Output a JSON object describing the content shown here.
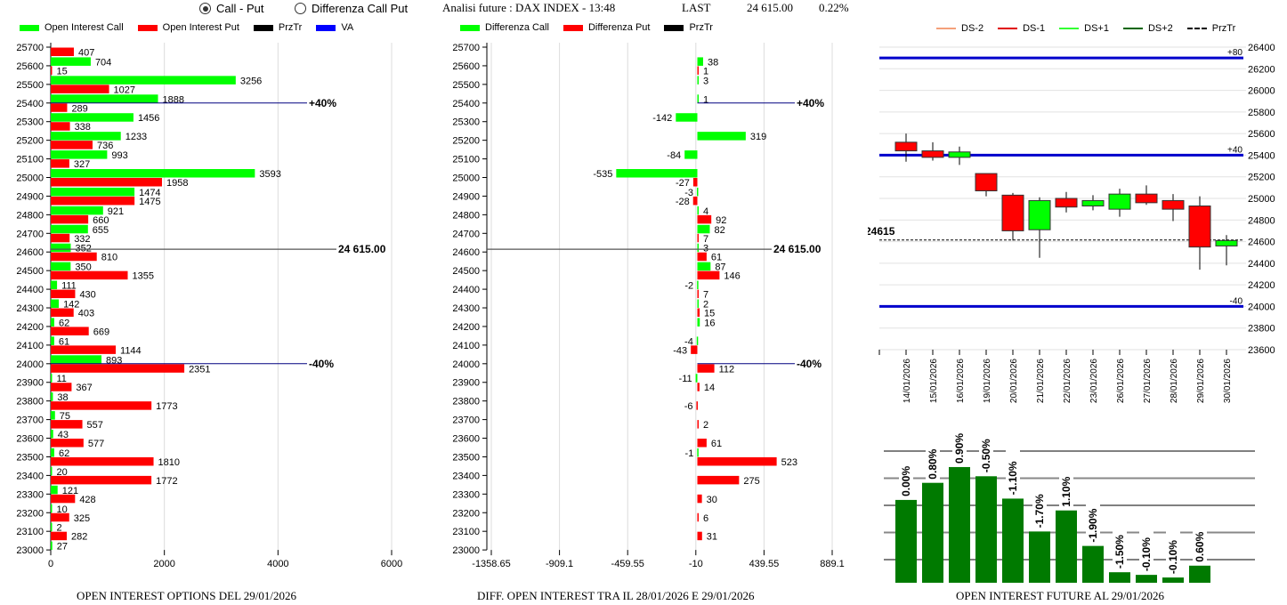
{
  "controls": {
    "view_options": [
      {
        "label": "Call - Put",
        "selected": true
      },
      {
        "label": "Differenza Call Put",
        "selected": false
      }
    ]
  },
  "header": {
    "title": "Analisi future : DAX INDEX - 13:48",
    "last_label": "LAST",
    "last_value": "24 615.00",
    "change_pct": "0.22%"
  },
  "colors": {
    "call": "#00ff00",
    "put": "#ff0000",
    "przTr": "#000000",
    "va": "#0000ff",
    "ds_minus2": "#f4a07a",
    "ds_minus1": "#e00000",
    "ds_plus1": "#33ff33",
    "ds_plus2": "#006600",
    "oi_future_bar": "#007a00"
  },
  "chart_data": [
    {
      "id": "oi_options",
      "type": "bar",
      "orientation": "horizontal",
      "title": "OPEN INTEREST OPTIONS DEL 29/01/2026",
      "legend": [
        {
          "label": "Open Interest Call",
          "color": "#00ff00"
        },
        {
          "label": "Open Interest Put",
          "color": "#ff0000"
        },
        {
          "label": "PrzTr",
          "color": "#000000"
        },
        {
          "label": "VA",
          "color": "#0000ff"
        }
      ],
      "categories": [
        25700,
        25600,
        25500,
        25400,
        25300,
        25200,
        25100,
        25000,
        24900,
        24800,
        24700,
        24600,
        24500,
        24400,
        24300,
        24200,
        24100,
        24000,
        23900,
        23800,
        23700,
        23600,
        23500,
        23400,
        23300,
        23200,
        23100,
        23000
      ],
      "series": [
        {
          "name": "Open Interest Call",
          "values": [
            null,
            704,
            3256,
            1888,
            1456,
            1233,
            993,
            3593,
            1474,
            921,
            655,
            352,
            350,
            111,
            142,
            62,
            61,
            893,
            11,
            38,
            75,
            43,
            62,
            20,
            121,
            10,
            2,
            27
          ]
        },
        {
          "name": "Open Interest Put",
          "values": [
            407,
            15,
            1027,
            289,
            338,
            736,
            327,
            1958,
            1475,
            660,
            332,
            810,
            1355,
            430,
            403,
            669,
            1144,
            2351,
            367,
            1773,
            557,
            577,
            1810,
            1772,
            428,
            325,
            282,
            null
          ]
        }
      ],
      "xlim": [
        0,
        6000
      ],
      "xticks": [
        "0",
        "2000",
        "4000",
        "6000"
      ],
      "annotations": [
        {
          "label": "+40%",
          "y": 25400,
          "color": "#000080"
        },
        {
          "label": "24 615.00",
          "y": 24615,
          "color": "#555555"
        },
        {
          "label": "-40%",
          "y": 24000,
          "color": "#000080"
        }
      ]
    },
    {
      "id": "oi_diff",
      "type": "bar",
      "orientation": "horizontal",
      "title": "DIFF. OPEN INTEREST TRA IL 28/01/2026 E 29/01/2026",
      "legend": [
        {
          "label": "Differenza Call",
          "color": "#00ff00"
        },
        {
          "label": "Differenza Put",
          "color": "#ff0000"
        },
        {
          "label": "PrzTr",
          "color": "#000000"
        }
      ],
      "categories": [
        25700,
        25600,
        25500,
        25400,
        25300,
        25200,
        25100,
        25000,
        24900,
        24800,
        24700,
        24600,
        24500,
        24400,
        24300,
        24200,
        24100,
        24000,
        23900,
        23800,
        23700,
        23600,
        23500,
        23400,
        23300,
        23200,
        23100,
        23000
      ],
      "series": [
        {
          "name": "Differenza Call",
          "values": [
            null,
            38,
            3,
            1,
            -142,
            319,
            -84,
            -535,
            -3,
            4,
            82,
            3,
            87,
            -2,
            2,
            16,
            -4,
            null,
            -11,
            null,
            null,
            null,
            -1,
            null,
            null,
            null,
            null,
            null
          ]
        },
        {
          "name": "Differenza Put",
          "values": [
            null,
            1,
            null,
            null,
            null,
            null,
            null,
            -27,
            -28,
            92,
            7,
            61,
            146,
            7,
            15,
            null,
            -43,
            112,
            14,
            -6,
            2,
            61,
            523,
            275,
            30,
            6,
            31,
            null
          ]
        }
      ],
      "xlim": [
        -1358.65,
        889.1
      ],
      "xticks": [
        "-1358.65",
        "-909.1",
        "-459.55",
        "-10",
        "439.55",
        "889.1"
      ],
      "annotations": [
        {
          "label": "+40%",
          "y": 25400,
          "color": "#000080"
        },
        {
          "label": "24 615.00",
          "y": 24615,
          "color": "#555555"
        },
        {
          "label": "-40%",
          "y": 24000,
          "color": "#000080"
        }
      ]
    },
    {
      "id": "future_candles",
      "type": "candlestick",
      "legend": [
        {
          "label": "DS-2",
          "color": "#f4a07a",
          "style": "solid"
        },
        {
          "label": "DS-1",
          "color": "#e00000",
          "style": "solid"
        },
        {
          "label": "DS+1",
          "color": "#33ff33",
          "style": "solid"
        },
        {
          "label": "DS+2",
          "color": "#006600",
          "style": "solid"
        },
        {
          "label": "PrzTr",
          "color": "#000000",
          "style": "dashed"
        }
      ],
      "categories": [
        "14/01/2026",
        "15/01/2026",
        "16/01/2026",
        "19/01/2026",
        "20/01/2026",
        "21/01/2026",
        "22/01/2026",
        "23/01/2026",
        "26/01/2026",
        "27/01/2026",
        "28/01/2026",
        "29/01/2026",
        "30/01/2026"
      ],
      "ohlc": [
        {
          "open": 25520,
          "high": 25600,
          "low": 25340,
          "close": 25440
        },
        {
          "open": 25440,
          "high": 25520,
          "low": 25350,
          "close": 25380
        },
        {
          "open": 25380,
          "high": 25480,
          "low": 25310,
          "close": 25430
        },
        {
          "open": 25230,
          "high": 25230,
          "low": 25020,
          "close": 25070
        },
        {
          "open": 25030,
          "high": 25050,
          "low": 24610,
          "close": 24700
        },
        {
          "open": 24710,
          "high": 25010,
          "low": 24450,
          "close": 24980
        },
        {
          "open": 25000,
          "high": 25060,
          "low": 24870,
          "close": 24920
        },
        {
          "open": 24930,
          "high": 25030,
          "low": 24890,
          "close": 24980
        },
        {
          "open": 24900,
          "high": 25090,
          "low": 24830,
          "close": 25040
        },
        {
          "open": 25040,
          "high": 25120,
          "low": 24940,
          "close": 24960
        },
        {
          "open": 24980,
          "high": 25040,
          "low": 24790,
          "close": 24900
        },
        {
          "open": 24930,
          "high": 25020,
          "low": 24340,
          "close": 24550
        },
        {
          "open": 24560,
          "high": 24660,
          "low": 24380,
          "close": 24610
        }
      ],
      "ylim": [
        23600,
        26400
      ],
      "yticks": [
        26400,
        26200,
        26000,
        25800,
        25600,
        25400,
        25200,
        25000,
        24800,
        24600,
        24400,
        24200,
        24000,
        23800,
        23600
      ],
      "levels": [
        {
          "label": "+80",
          "value": 26300,
          "color": "#0000cc"
        },
        {
          "label": "+40",
          "value": 25400,
          "color": "#0000cc"
        },
        {
          "label": "-40",
          "value": 24000,
          "color": "#0000cc"
        }
      ],
      "last_price": {
        "label": "24615",
        "value": 24615
      }
    },
    {
      "id": "oi_future",
      "type": "bar",
      "title": "OPEN INTEREST FUTURE AL 29/01/2026",
      "categories": [
        "14/01/2026",
        "15/01/2026",
        "16/01/2026",
        "19/01/2026",
        "20/01/2026",
        "21/01/2026",
        "22/01/2026",
        "23/01/2026",
        "26/01/2026",
        "27/01/2026",
        "28/01/2026",
        "29/01/2026"
      ],
      "values": [
        0.63,
        0.76,
        0.88,
        0.81,
        0.64,
        0.39,
        0.55,
        0.28,
        0.08,
        0.06,
        0.04,
        0.13
      ],
      "value_scale": "relative (0-1, axis unlabeled)",
      "labels": [
        "0.00%",
        "0.80%",
        "0.90%",
        "-0.50%",
        "-1.10%",
        "-1.70%",
        "1.10%",
        "-1.90%",
        "-1.50%",
        "-0.10%",
        "-0.10%",
        "0.60%"
      ],
      "grid": true
    }
  ]
}
